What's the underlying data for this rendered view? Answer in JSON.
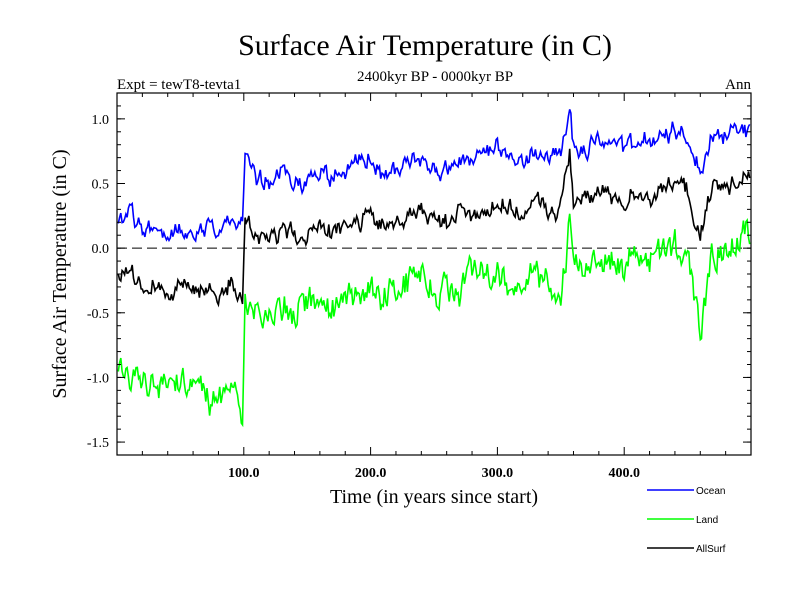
{
  "chart_data": {
    "type": "line",
    "title": "Surface Air Temperature (in C)",
    "subtitle": "2400kyr BP - 0000kyr BP",
    "left_label": "Expt = tewT8-tevta1",
    "right_label": "Ann",
    "xlabel": "Time (in years since start)",
    "ylabel": "Surface Air Temperature (in C)",
    "xlim": [
      0,
      500
    ],
    "ylim": [
      -1.6,
      1.2
    ],
    "xticks": [
      100,
      200,
      300,
      400
    ],
    "xtick_labels": [
      "100.0",
      "200.0",
      "300.0",
      "400.0"
    ],
    "yticks": [
      1.0,
      0.5,
      0.0,
      -0.5,
      -1.0,
      -1.5
    ],
    "ytick_labels": [
      "1.0",
      "0.5",
      "0.0",
      "-0.5",
      "-1.0",
      "-1.5"
    ],
    "reference_line": 0.0,
    "legend_position": "bottom-right",
    "series": [
      {
        "name": "Ocean",
        "color": "#0000ff",
        "x": [
          0,
          10,
          20,
          30,
          40,
          50,
          60,
          70,
          80,
          90,
          99,
          101,
          110,
          120,
          130,
          140,
          150,
          160,
          170,
          180,
          190,
          200,
          210,
          220,
          230,
          240,
          250,
          260,
          270,
          280,
          290,
          300,
          310,
          320,
          330,
          340,
          350,
          357,
          360,
          370,
          380,
          390,
          400,
          410,
          420,
          430,
          440,
          450,
          460,
          470,
          480,
          490,
          500
        ],
        "values": [
          0.15,
          0.3,
          0.12,
          0.18,
          0.08,
          0.15,
          0.12,
          0.2,
          0.15,
          0.22,
          0.2,
          0.7,
          0.55,
          0.45,
          0.6,
          0.55,
          0.5,
          0.6,
          0.52,
          0.6,
          0.65,
          0.7,
          0.55,
          0.6,
          0.65,
          0.7,
          0.6,
          0.6,
          0.7,
          0.65,
          0.7,
          0.75,
          0.7,
          0.65,
          0.75,
          0.7,
          0.75,
          1.05,
          0.8,
          0.75,
          0.85,
          0.8,
          0.75,
          0.85,
          0.8,
          0.85,
          0.9,
          0.85,
          0.6,
          0.9,
          0.85,
          0.95,
          0.9
        ]
      },
      {
        "name": "Land",
        "color": "#00ff00",
        "x": [
          0,
          10,
          20,
          30,
          40,
          50,
          60,
          70,
          80,
          90,
          99,
          101,
          110,
          120,
          130,
          140,
          150,
          160,
          170,
          180,
          190,
          200,
          210,
          220,
          230,
          240,
          250,
          260,
          270,
          280,
          290,
          300,
          310,
          320,
          330,
          340,
          350,
          357,
          360,
          370,
          380,
          390,
          400,
          410,
          420,
          430,
          440,
          450,
          460,
          470,
          480,
          490,
          500
        ],
        "values": [
          -0.9,
          -1.0,
          -1.05,
          -1.0,
          -1.1,
          -1.0,
          -1.05,
          -1.1,
          -1.25,
          -1.0,
          -1.3,
          -0.4,
          -0.5,
          -0.55,
          -0.45,
          -0.5,
          -0.4,
          -0.5,
          -0.45,
          -0.4,
          -0.35,
          -0.3,
          -0.4,
          -0.3,
          -0.25,
          -0.2,
          -0.3,
          -0.35,
          -0.3,
          -0.2,
          -0.25,
          -0.2,
          -0.3,
          -0.25,
          -0.2,
          -0.3,
          -0.35,
          0.2,
          -0.1,
          -0.15,
          -0.05,
          -0.1,
          -0.15,
          0.0,
          -0.1,
          -0.05,
          0.0,
          -0.1,
          -0.65,
          -0.05,
          0.0,
          0.05,
          0.1
        ]
      },
      {
        "name": "AllSurf",
        "color": "#000000",
        "x": [
          0,
          10,
          20,
          30,
          40,
          50,
          60,
          70,
          80,
          90,
          99,
          101,
          110,
          120,
          130,
          140,
          150,
          160,
          170,
          180,
          190,
          200,
          210,
          220,
          230,
          240,
          250,
          260,
          270,
          280,
          290,
          300,
          310,
          320,
          330,
          340,
          350,
          357,
          360,
          370,
          380,
          390,
          400,
          410,
          420,
          430,
          440,
          450,
          460,
          470,
          480,
          490,
          500
        ],
        "values": [
          -0.2,
          -0.2,
          -0.3,
          -0.25,
          -0.35,
          -0.3,
          -0.28,
          -0.3,
          -0.35,
          -0.25,
          -0.4,
          0.2,
          0.1,
          0.05,
          0.15,
          0.1,
          0.1,
          0.15,
          0.1,
          0.15,
          0.2,
          0.25,
          0.15,
          0.2,
          0.25,
          0.3,
          0.2,
          0.2,
          0.3,
          0.25,
          0.3,
          0.35,
          0.3,
          0.25,
          0.35,
          0.3,
          0.3,
          0.75,
          0.4,
          0.35,
          0.45,
          0.4,
          0.35,
          0.45,
          0.4,
          0.45,
          0.5,
          0.45,
          0.05,
          0.5,
          0.45,
          0.55,
          0.55
        ]
      }
    ]
  }
}
